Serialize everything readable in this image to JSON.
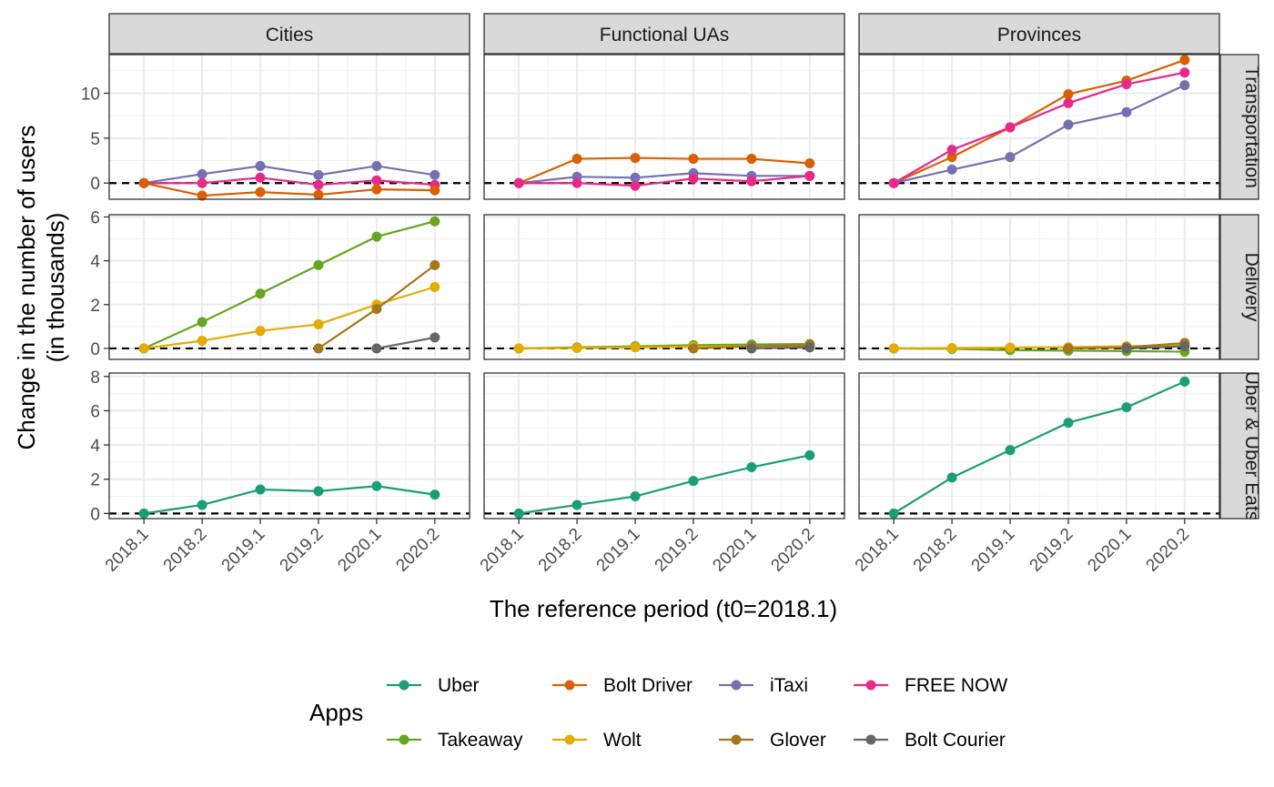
{
  "chart_data": {
    "type": "line",
    "facet_rows": [
      "Transportation",
      "Delivery",
      "Uber & Uber Eats"
    ],
    "facet_cols": [
      "Cities",
      "Functional UAs",
      "Provinces"
    ],
    "x_categories": [
      "2018.1",
      "2018.2",
      "2019.1",
      "2019.2",
      "2020.1",
      "2020.2"
    ],
    "xlabel": "The reference period (t0=2018.1)",
    "ylabel_line1": "Change in the number of users",
    "ylabel_line2": "(in thousands)",
    "reference_line_y": 0,
    "rows": [
      {
        "ylim": [
          -1.8,
          14.3
        ],
        "ticks": [
          0,
          5,
          10
        ],
        "tick_labels": [
          "0",
          "5",
          "10"
        ]
      },
      {
        "ylim": [
          -0.5,
          6.1
        ],
        "ticks": [
          0,
          2,
          4,
          6
        ],
        "tick_labels": [
          "0",
          "2",
          "4",
          "6"
        ]
      },
      {
        "ylim": [
          -0.3,
          8.2
        ],
        "ticks": [
          0,
          2,
          4,
          6,
          8
        ],
        "tick_labels": [
          "0",
          "2",
          "4",
          "6",
          "8"
        ]
      }
    ],
    "panels": [
      {
        "row": 0,
        "col": 0,
        "series": [
          {
            "name": "iTaxi",
            "values": [
              0,
              1.0,
              1.9,
              0.9,
              1.9,
              0.9
            ]
          },
          {
            "name": "FREE NOW",
            "values": [
              0,
              0.0,
              0.6,
              -0.2,
              0.3,
              -0.2
            ]
          },
          {
            "name": "Bolt Driver",
            "values": [
              0,
              -1.4,
              -1.0,
              -1.3,
              -0.7,
              -0.8
            ]
          }
        ]
      },
      {
        "row": 0,
        "col": 1,
        "series": [
          {
            "name": "Bolt Driver",
            "values": [
              0,
              2.7,
              2.8,
              2.7,
              2.7,
              2.2
            ]
          },
          {
            "name": "iTaxi",
            "values": [
              0,
              0.7,
              0.6,
              1.1,
              0.8,
              0.8
            ]
          },
          {
            "name": "FREE NOW",
            "values": [
              0,
              0.0,
              -0.3,
              0.5,
              0.2,
              0.8
            ]
          }
        ]
      },
      {
        "row": 0,
        "col": 2,
        "series": [
          {
            "name": "Bolt Driver",
            "values": [
              0,
              2.9,
              6.2,
              9.9,
              11.4,
              13.7
            ]
          },
          {
            "name": "iTaxi",
            "values": [
              0,
              1.5,
              2.9,
              6.5,
              7.9,
              10.9
            ]
          },
          {
            "name": "FREE NOW",
            "values": [
              0,
              3.7,
              6.2,
              8.9,
              11.0,
              12.3
            ]
          }
        ]
      },
      {
        "row": 1,
        "col": 0,
        "series": [
          {
            "name": "Takeaway",
            "values": [
              0,
              1.2,
              2.5,
              3.8,
              5.1,
              5.8
            ]
          },
          {
            "name": "Wolt",
            "values": [
              0,
              0.35,
              0.8,
              1.1,
              2.0,
              2.8
            ]
          },
          {
            "name": "Glover",
            "values": [
              null,
              null,
              null,
              0,
              1.8,
              3.8
            ]
          },
          {
            "name": "Bolt Courier",
            "values": [
              null,
              null,
              null,
              null,
              0,
              0.5
            ]
          }
        ]
      },
      {
        "row": 1,
        "col": 1,
        "series": [
          {
            "name": "Takeaway",
            "values": [
              0,
              0.05,
              0.1,
              0.15,
              0.18,
              0.2
            ]
          },
          {
            "name": "Wolt",
            "values": [
              0,
              0.02,
              0.05,
              0.08,
              0.1,
              0.12
            ]
          },
          {
            "name": "Glover",
            "values": [
              null,
              null,
              null,
              0,
              0.1,
              0.15
            ]
          },
          {
            "name": "Bolt Courier",
            "values": [
              null,
              null,
              null,
              null,
              0,
              0.05
            ]
          }
        ]
      },
      {
        "row": 1,
        "col": 2,
        "series": [
          {
            "name": "Takeaway",
            "values": [
              0,
              -0.02,
              -0.08,
              -0.1,
              -0.12,
              -0.15
            ]
          },
          {
            "name": "Wolt",
            "values": [
              0,
              0.02,
              0.04,
              0.06,
              0.1,
              0.15
            ]
          },
          {
            "name": "Glover",
            "values": [
              null,
              null,
              null,
              0,
              0.05,
              0.25
            ]
          },
          {
            "name": "Bolt Courier",
            "values": [
              null,
              null,
              null,
              null,
              0,
              0.1
            ]
          }
        ]
      },
      {
        "row": 2,
        "col": 0,
        "series": [
          {
            "name": "Uber",
            "values": [
              0,
              0.5,
              1.4,
              1.3,
              1.6,
              1.1
            ]
          }
        ]
      },
      {
        "row": 2,
        "col": 1,
        "series": [
          {
            "name": "Uber",
            "values": [
              0,
              0.5,
              1.0,
              1.9,
              2.7,
              3.4
            ]
          }
        ]
      },
      {
        "row": 2,
        "col": 2,
        "series": [
          {
            "name": "Uber",
            "values": [
              0,
              2.1,
              3.7,
              5.3,
              6.2,
              7.7
            ]
          }
        ]
      }
    ],
    "legend": {
      "title": "Apps",
      "position": "bottom",
      "items": [
        {
          "name": "Uber",
          "color": "#1B9E77"
        },
        {
          "name": "Bolt Driver",
          "color": "#D95F02"
        },
        {
          "name": "iTaxi",
          "color": "#7570B3"
        },
        {
          "name": "FREE NOW",
          "color": "#E7298A"
        },
        {
          "name": "Takeaway",
          "color": "#66A61E"
        },
        {
          "name": "Wolt",
          "color": "#E6AB02"
        },
        {
          "name": "Glover",
          "color": "#A6761D"
        },
        {
          "name": "Bolt Courier",
          "color": "#666666"
        }
      ]
    }
  }
}
